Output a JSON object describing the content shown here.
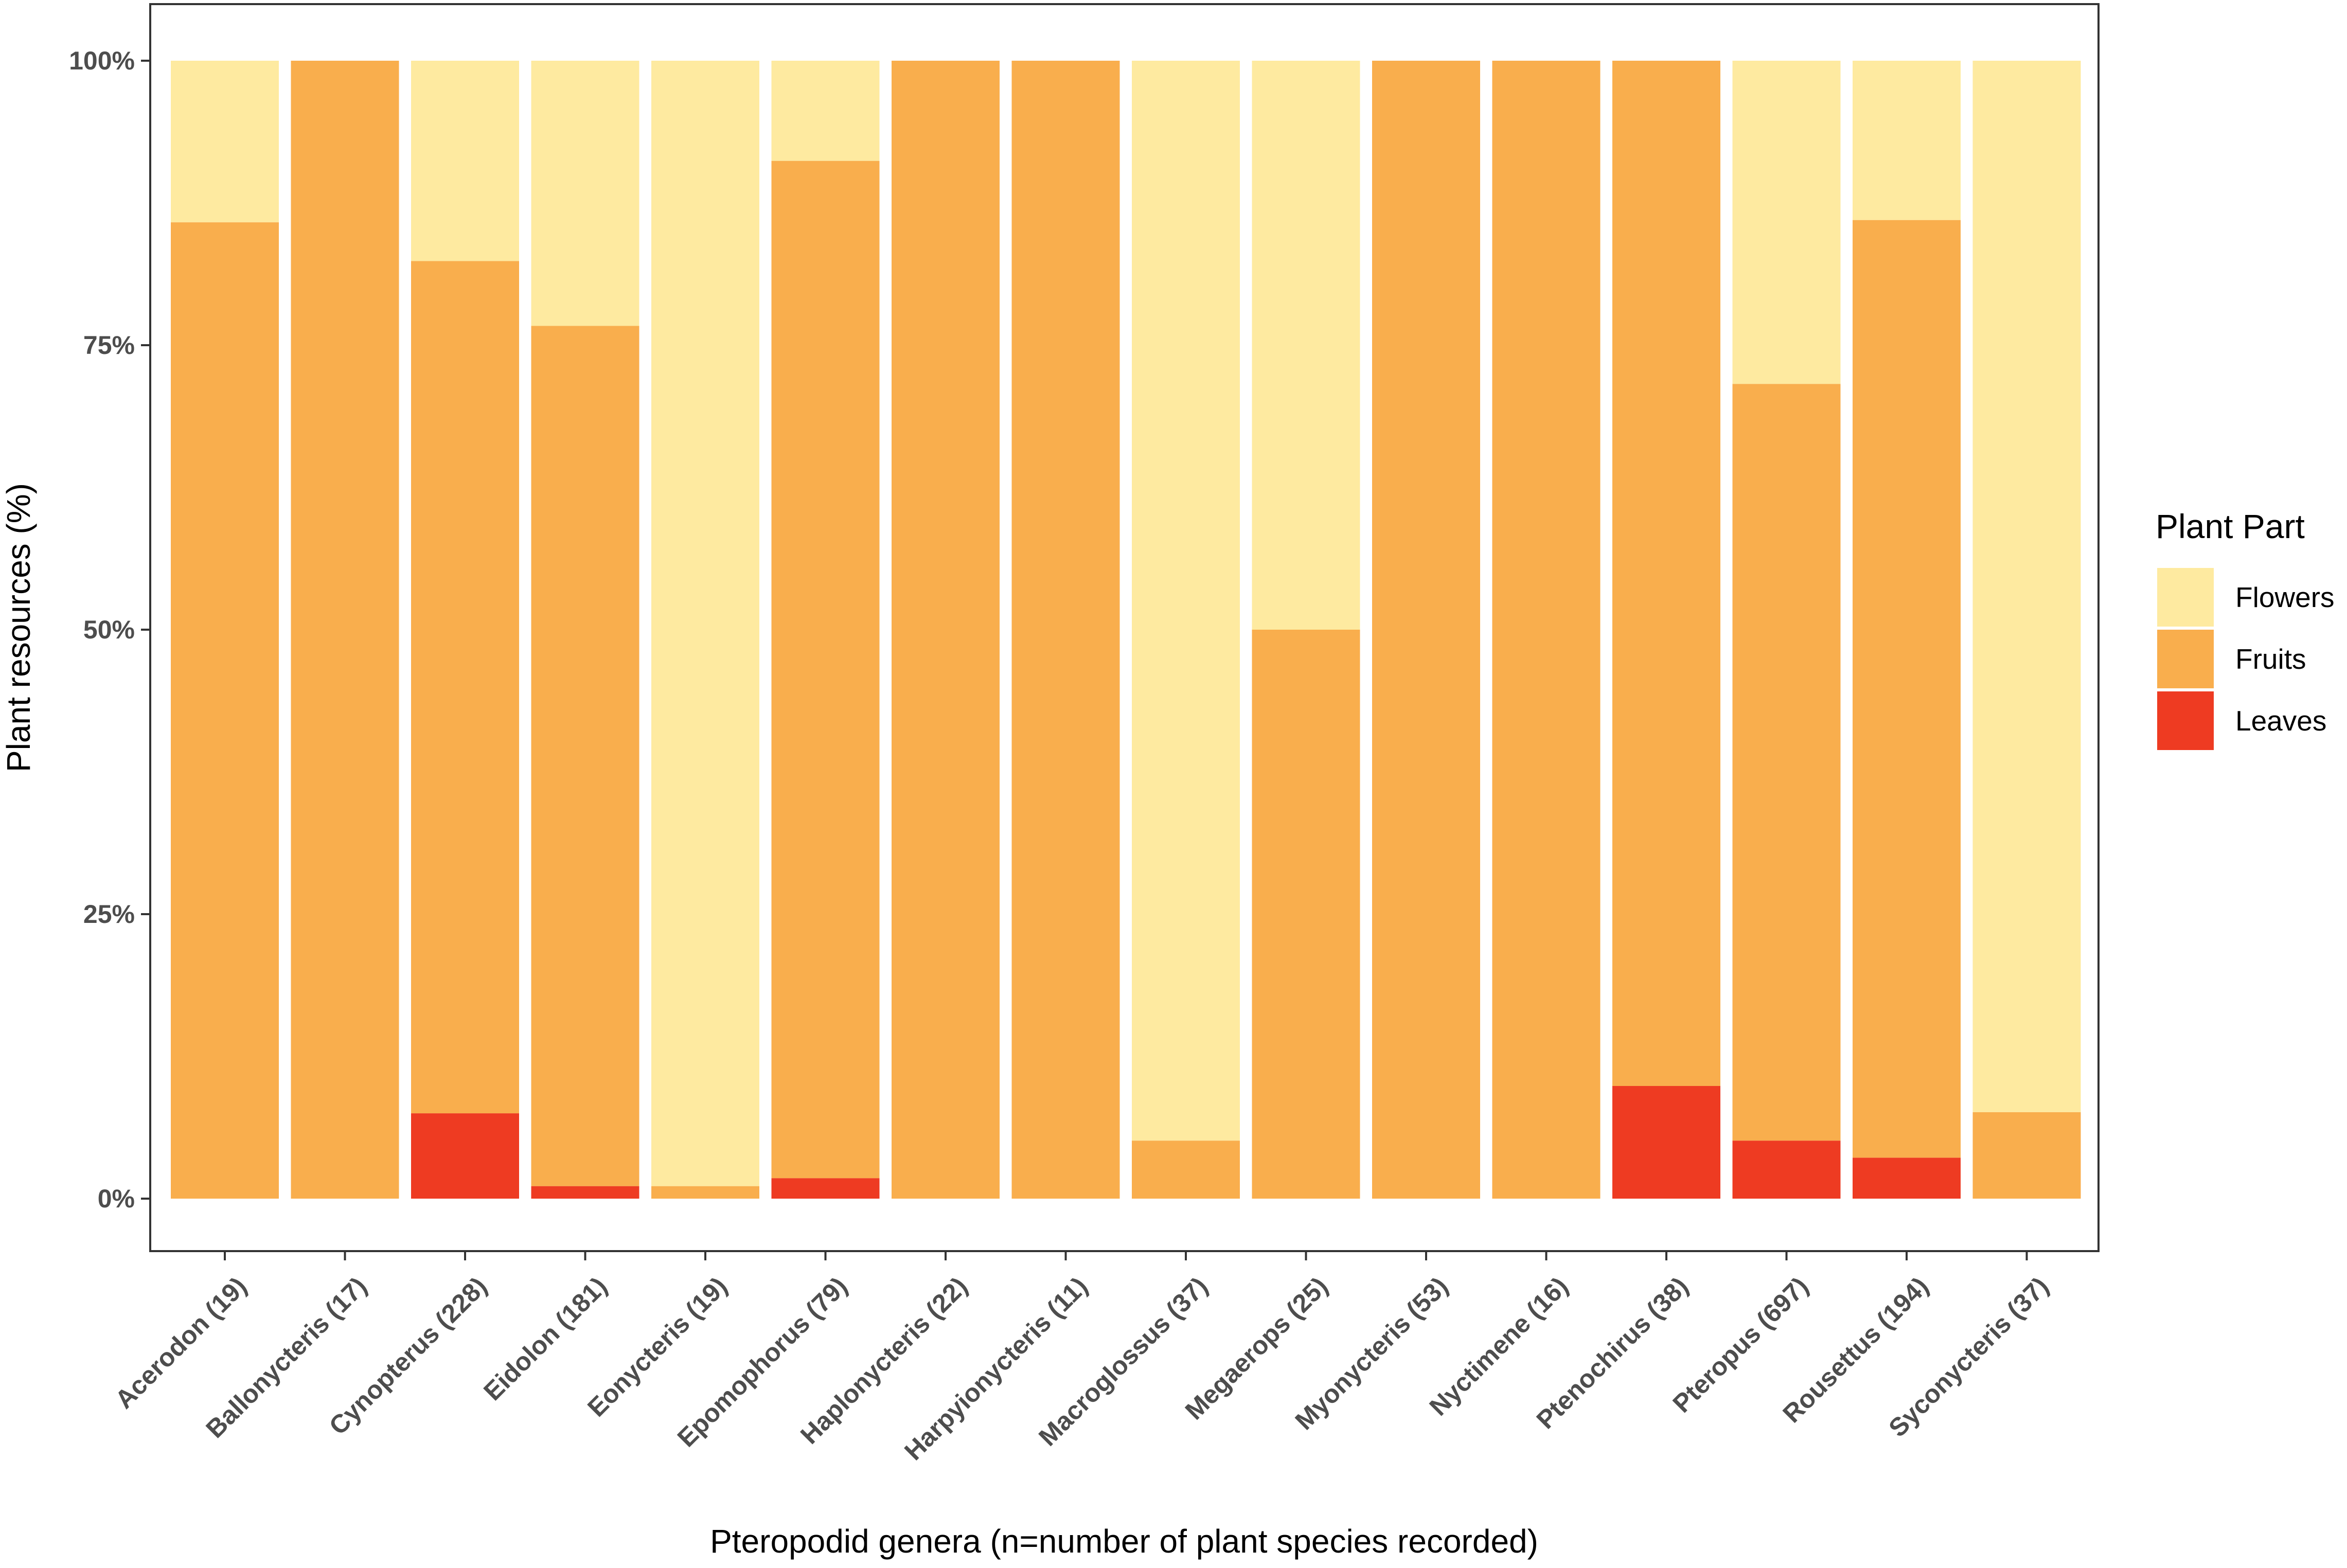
{
  "chart_data": {
    "type": "bar",
    "stacked": "percent",
    "title": "",
    "xlabel": "Pteropodid genera (n=number of plant species recorded)",
    "ylabel": "Plant resources (%)",
    "ylim": [
      0,
      100
    ],
    "yticks": [
      0,
      25,
      50,
      75,
      100
    ],
    "ytick_labels": [
      "0%",
      "25%",
      "50%",
      "75%",
      "100%"
    ],
    "grid": false,
    "legend": {
      "title": "Plant Part",
      "placement": "right",
      "entries": [
        "Flowers",
        "Fruits",
        "Leaves"
      ]
    },
    "categories": [
      "Acerodon (19)",
      "Ballonycteris (17)",
      "Cynopterus (228)",
      "Eidolon (181)",
      "Eonycteris (19)",
      "Epomophorus (79)",
      "Haplonycteris (22)",
      "Harpyionycteris (11)",
      "Macroglossus (37)",
      "Megaerops (25)",
      "Myonycteris (53)",
      "Nyctimene (16)",
      "Ptenochirus (38)",
      "Pteropus (697)",
      "Rousettus (194)",
      "Syconycteris (37)"
    ],
    "series": [
      {
        "name": "Leaves",
        "color": "#ee3b22",
        "values": [
          0,
          0,
          7.5,
          1.1,
          0,
          1.8,
          0,
          0,
          0,
          0,
          0,
          0,
          9.9,
          5.1,
          3.6,
          0
        ]
      },
      {
        "name": "Fruits",
        "color": "#f9ae4d",
        "values": [
          85.8,
          100,
          74.9,
          75.6,
          1.1,
          89.4,
          100,
          100,
          5.1,
          50.0,
          100,
          100,
          90.1,
          66.5,
          82.4,
          7.6
        ]
      },
      {
        "name": "Flowers",
        "color": "#feeaa0",
        "values": [
          14.2,
          0,
          17.6,
          23.3,
          98.9,
          8.8,
          0,
          0,
          94.9,
          50.0,
          0,
          0,
          0,
          28.4,
          14.0,
          92.4
        ]
      }
    ]
  }
}
